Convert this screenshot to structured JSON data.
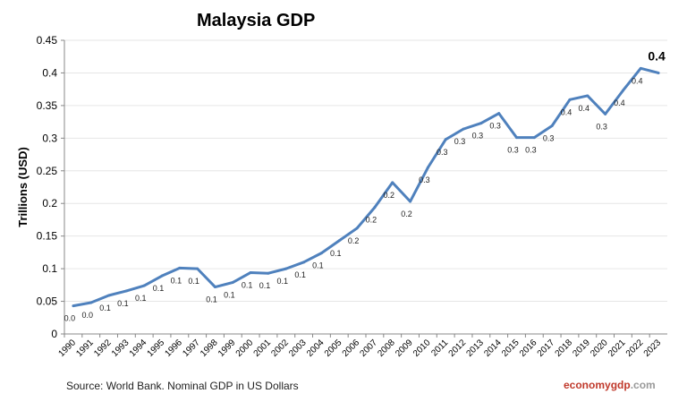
{
  "chart_data": {
    "type": "line",
    "title": "Malaysia GDP",
    "xlabel": "",
    "ylabel": "Trillions (USD)",
    "ylim": [
      0,
      0.45
    ],
    "yticks": [
      "0",
      "0.05",
      "0.1",
      "0.15",
      "0.2",
      "0.25",
      "0.3",
      "0.35",
      "0.4",
      "0.45"
    ],
    "grid": true,
    "line_color": "#4f81bd",
    "categories": [
      "1990",
      "1991",
      "1992",
      "1993",
      "1994",
      "1995",
      "1996",
      "1997",
      "1998",
      "1999",
      "2000",
      "2001",
      "2002",
      "2003",
      "2004",
      "2005",
      "2006",
      "2007",
      "2008",
      "2009",
      "2010",
      "2011",
      "2012",
      "2013",
      "2014",
      "2015",
      "2016",
      "2017",
      "2018",
      "2019",
      "2020",
      "2021",
      "2022",
      "2023"
    ],
    "values": [
      0.043,
      0.048,
      0.059,
      0.066,
      0.074,
      0.089,
      0.101,
      0.1,
      0.072,
      0.079,
      0.094,
      0.093,
      0.1,
      0.11,
      0.124,
      0.143,
      0.162,
      0.194,
      0.232,
      0.203,
      0.255,
      0.298,
      0.314,
      0.323,
      0.338,
      0.301,
      0.301,
      0.319,
      0.359,
      0.365,
      0.337,
      0.373,
      0.407,
      0.4
    ],
    "data_labels": [
      "0.0",
      "0.0",
      "0.1",
      "0.1",
      "0.1",
      "0.1",
      "0.1",
      "0.1",
      "0.1",
      "0.1",
      "0.1",
      "0.1",
      "0.1",
      "0.1",
      "0.1",
      "0.1",
      "0.2",
      "0.2",
      "0.2",
      "0.2",
      "0.3",
      "0.3",
      "0.3",
      "0.3",
      "0.3",
      "0.3",
      "0.3",
      "0.3",
      "0.4",
      "0.4",
      "0.3",
      "0.4",
      "0.4",
      "0.4"
    ]
  },
  "footer": {
    "source": "Source: World Bank.  Nominal GDP  in US Dollars",
    "brand_a": "economy",
    "brand_b": "gdp",
    "brand_c": ".com"
  }
}
